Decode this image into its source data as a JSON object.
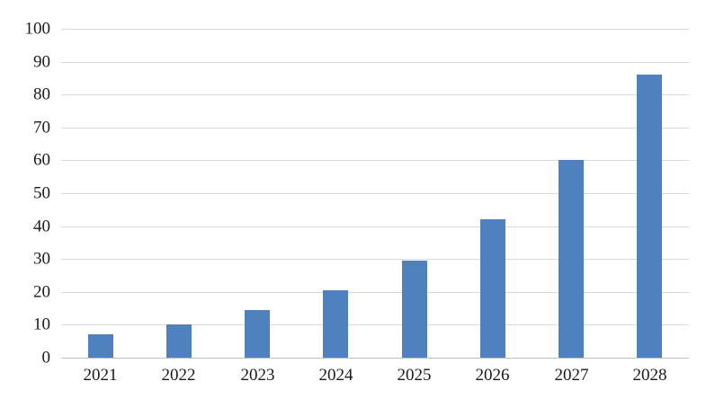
{
  "chart_data": {
    "type": "bar",
    "title": "",
    "xlabel": "",
    "ylabel": "",
    "categories": [
      "2021",
      "2022",
      "2023",
      "2024",
      "2025",
      "2026",
      "2027",
      "2028"
    ],
    "values": [
      7,
      10,
      14.5,
      20.5,
      29.5,
      42,
      60,
      86
    ],
    "ylim": [
      0,
      100
    ],
    "yticks": [
      0,
      10,
      20,
      30,
      40,
      50,
      60,
      70,
      80,
      90,
      100
    ],
    "grid": "horizontal",
    "legend": "none",
    "colors": {
      "bar": "#4e81bd",
      "gridline": "#d9d9d9",
      "axis_line": "#bfbfbf",
      "tick_label": "#1a1a1a",
      "background": "#ffffff"
    }
  }
}
